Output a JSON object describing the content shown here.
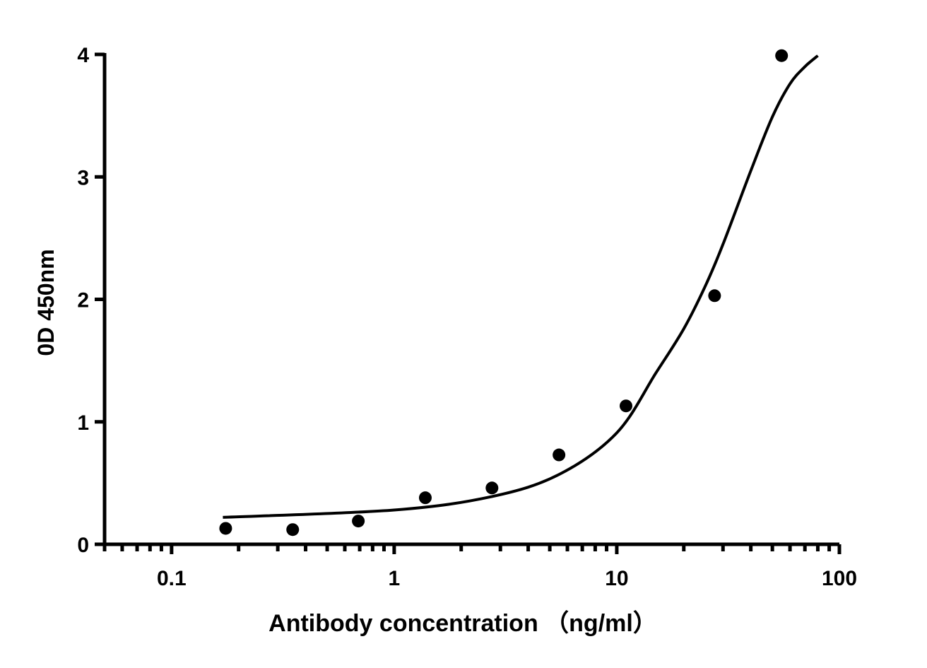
{
  "chart_data": {
    "type": "scatter",
    "title": "",
    "xlabel": "Antibody concentration （ng/ml）",
    "ylabel": "0D 450nm",
    "xscale": "log",
    "xlim": [
      0.05,
      100
    ],
    "ylim": [
      0,
      4
    ],
    "grid": false,
    "x_ticks": [
      0.1,
      1,
      10,
      100
    ],
    "x_tick_labels": [
      "0.1",
      "1",
      "10",
      "100"
    ],
    "y_ticks": [
      0,
      1,
      2,
      3,
      4
    ],
    "y_tick_labels": [
      "0",
      "1",
      "2",
      "3",
      "4"
    ],
    "series": [
      {
        "name": "data",
        "x": [
          0.175,
          0.35,
          0.69,
          1.38,
          2.75,
          5.5,
          11,
          27.5,
          55
        ],
        "y": [
          0.13,
          0.12,
          0.19,
          0.38,
          0.46,
          0.73,
          1.13,
          2.03,
          3.99
        ]
      },
      {
        "name": "fit",
        "x": [
          0.17,
          1,
          2.75,
          5.5,
          10,
          15,
          20,
          25,
          30,
          40,
          50,
          60,
          70,
          80
        ],
        "y": [
          0.22,
          0.28,
          0.39,
          0.57,
          0.91,
          1.4,
          1.76,
          2.11,
          2.45,
          3.05,
          3.49,
          3.76,
          3.9,
          3.99
        ]
      }
    ],
    "color": "#000000"
  }
}
